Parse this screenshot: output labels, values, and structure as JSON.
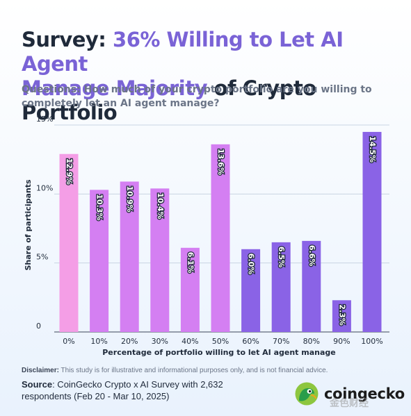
{
  "title": {
    "part1": "Survey: ",
    "part2": "36% Willing to Let AI Agent",
    "part3": "Manage Majority",
    "part4": " of Crypto Portfolio"
  },
  "question": "Questions: How much of your crypto portfolio are you willing to completely let an AI agent manage?",
  "disclaimer": {
    "label": "Disclaimer:",
    "text": " This study is for illustrative and informational purposes only, and is not financial advice."
  },
  "source": {
    "label": "Source",
    "text": ": CoinGecko Crypto x AI Survey with 2,632 respondents (Feb 20 - Mar 10, 2025)"
  },
  "brand": {
    "name": "coingecko",
    "logo_icon": "gecko-logo-icon"
  },
  "watermark": "金色财经",
  "colors": {
    "accent": "#7a63d6",
    "pink": "#f49ee6",
    "violet": "#d47ff2",
    "purple": "#8a63e6"
  },
  "chart_data": {
    "type": "bar",
    "categories": [
      "0%",
      "10%",
      "20%",
      "30%",
      "40%",
      "50%",
      "60%",
      "70%",
      "80%",
      "90%",
      "100%"
    ],
    "values": [
      12.9,
      10.3,
      10.9,
      10.4,
      6.1,
      13.6,
      6.0,
      6.5,
      6.6,
      2.3,
      14.5
    ],
    "data_labels": [
      "12.9%",
      "10.3%",
      "10.9%",
      "10.4%",
      "6.1%",
      "13.6%",
      "6.0%",
      "6.5%",
      "6.6%",
      "2.3%",
      "14.5%"
    ],
    "bar_colors": [
      "#f49ee6",
      "#d47ff2",
      "#d47ff2",
      "#d47ff2",
      "#d47ff2",
      "#d47ff2",
      "#8a63e6",
      "#8a63e6",
      "#8a63e6",
      "#8a63e6",
      "#8a63e6"
    ],
    "xlabel": "Percentage of portfolio willing to let AI agent manage",
    "ylabel": "Share of participants",
    "ylim": [
      0,
      15
    ],
    "yticks": [
      0,
      5,
      10,
      15
    ],
    "ytick_labels": [
      "0",
      "5%",
      "10%",
      "15%"
    ],
    "grid": true
  }
}
